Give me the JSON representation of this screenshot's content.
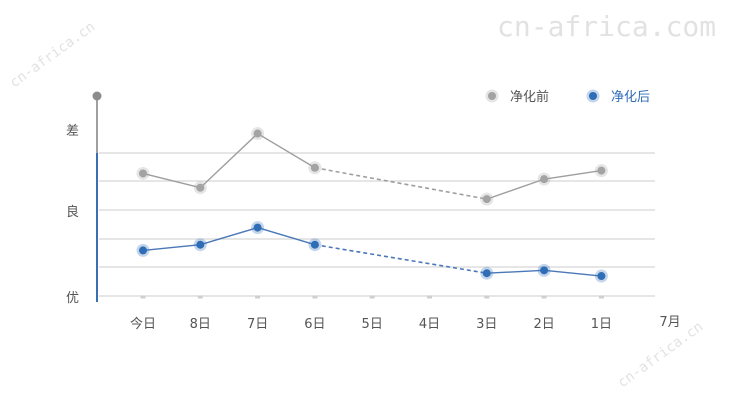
{
  "watermark": "cn-africa.com",
  "watermark_short": "cn-africa.cn",
  "chart_data": {
    "type": "line",
    "categories": [
      "今日",
      "8日",
      "7日",
      "6日",
      "5日",
      "4日",
      "3日",
      "2日",
      "1日"
    ],
    "x_end_label": "7月",
    "y_levels": [
      "优",
      "良",
      "差"
    ],
    "ylim": [
      0,
      5
    ],
    "grid": true,
    "legend_position": "top-right",
    "series": [
      {
        "name": "净化前",
        "color": "#9e9e9e",
        "point_color": "#a3a3a3",
        "values": [
          4.3,
          3.8,
          5.7,
          4.5,
          null,
          null,
          3.4,
          4.1,
          4.4
        ]
      },
      {
        "name": "净化后",
        "color": "#4a78b8",
        "point_color": "#2f6db7",
        "values": [
          1.6,
          1.8,
          2.4,
          1.8,
          null,
          null,
          0.8,
          0.9,
          0.7
        ]
      }
    ]
  }
}
